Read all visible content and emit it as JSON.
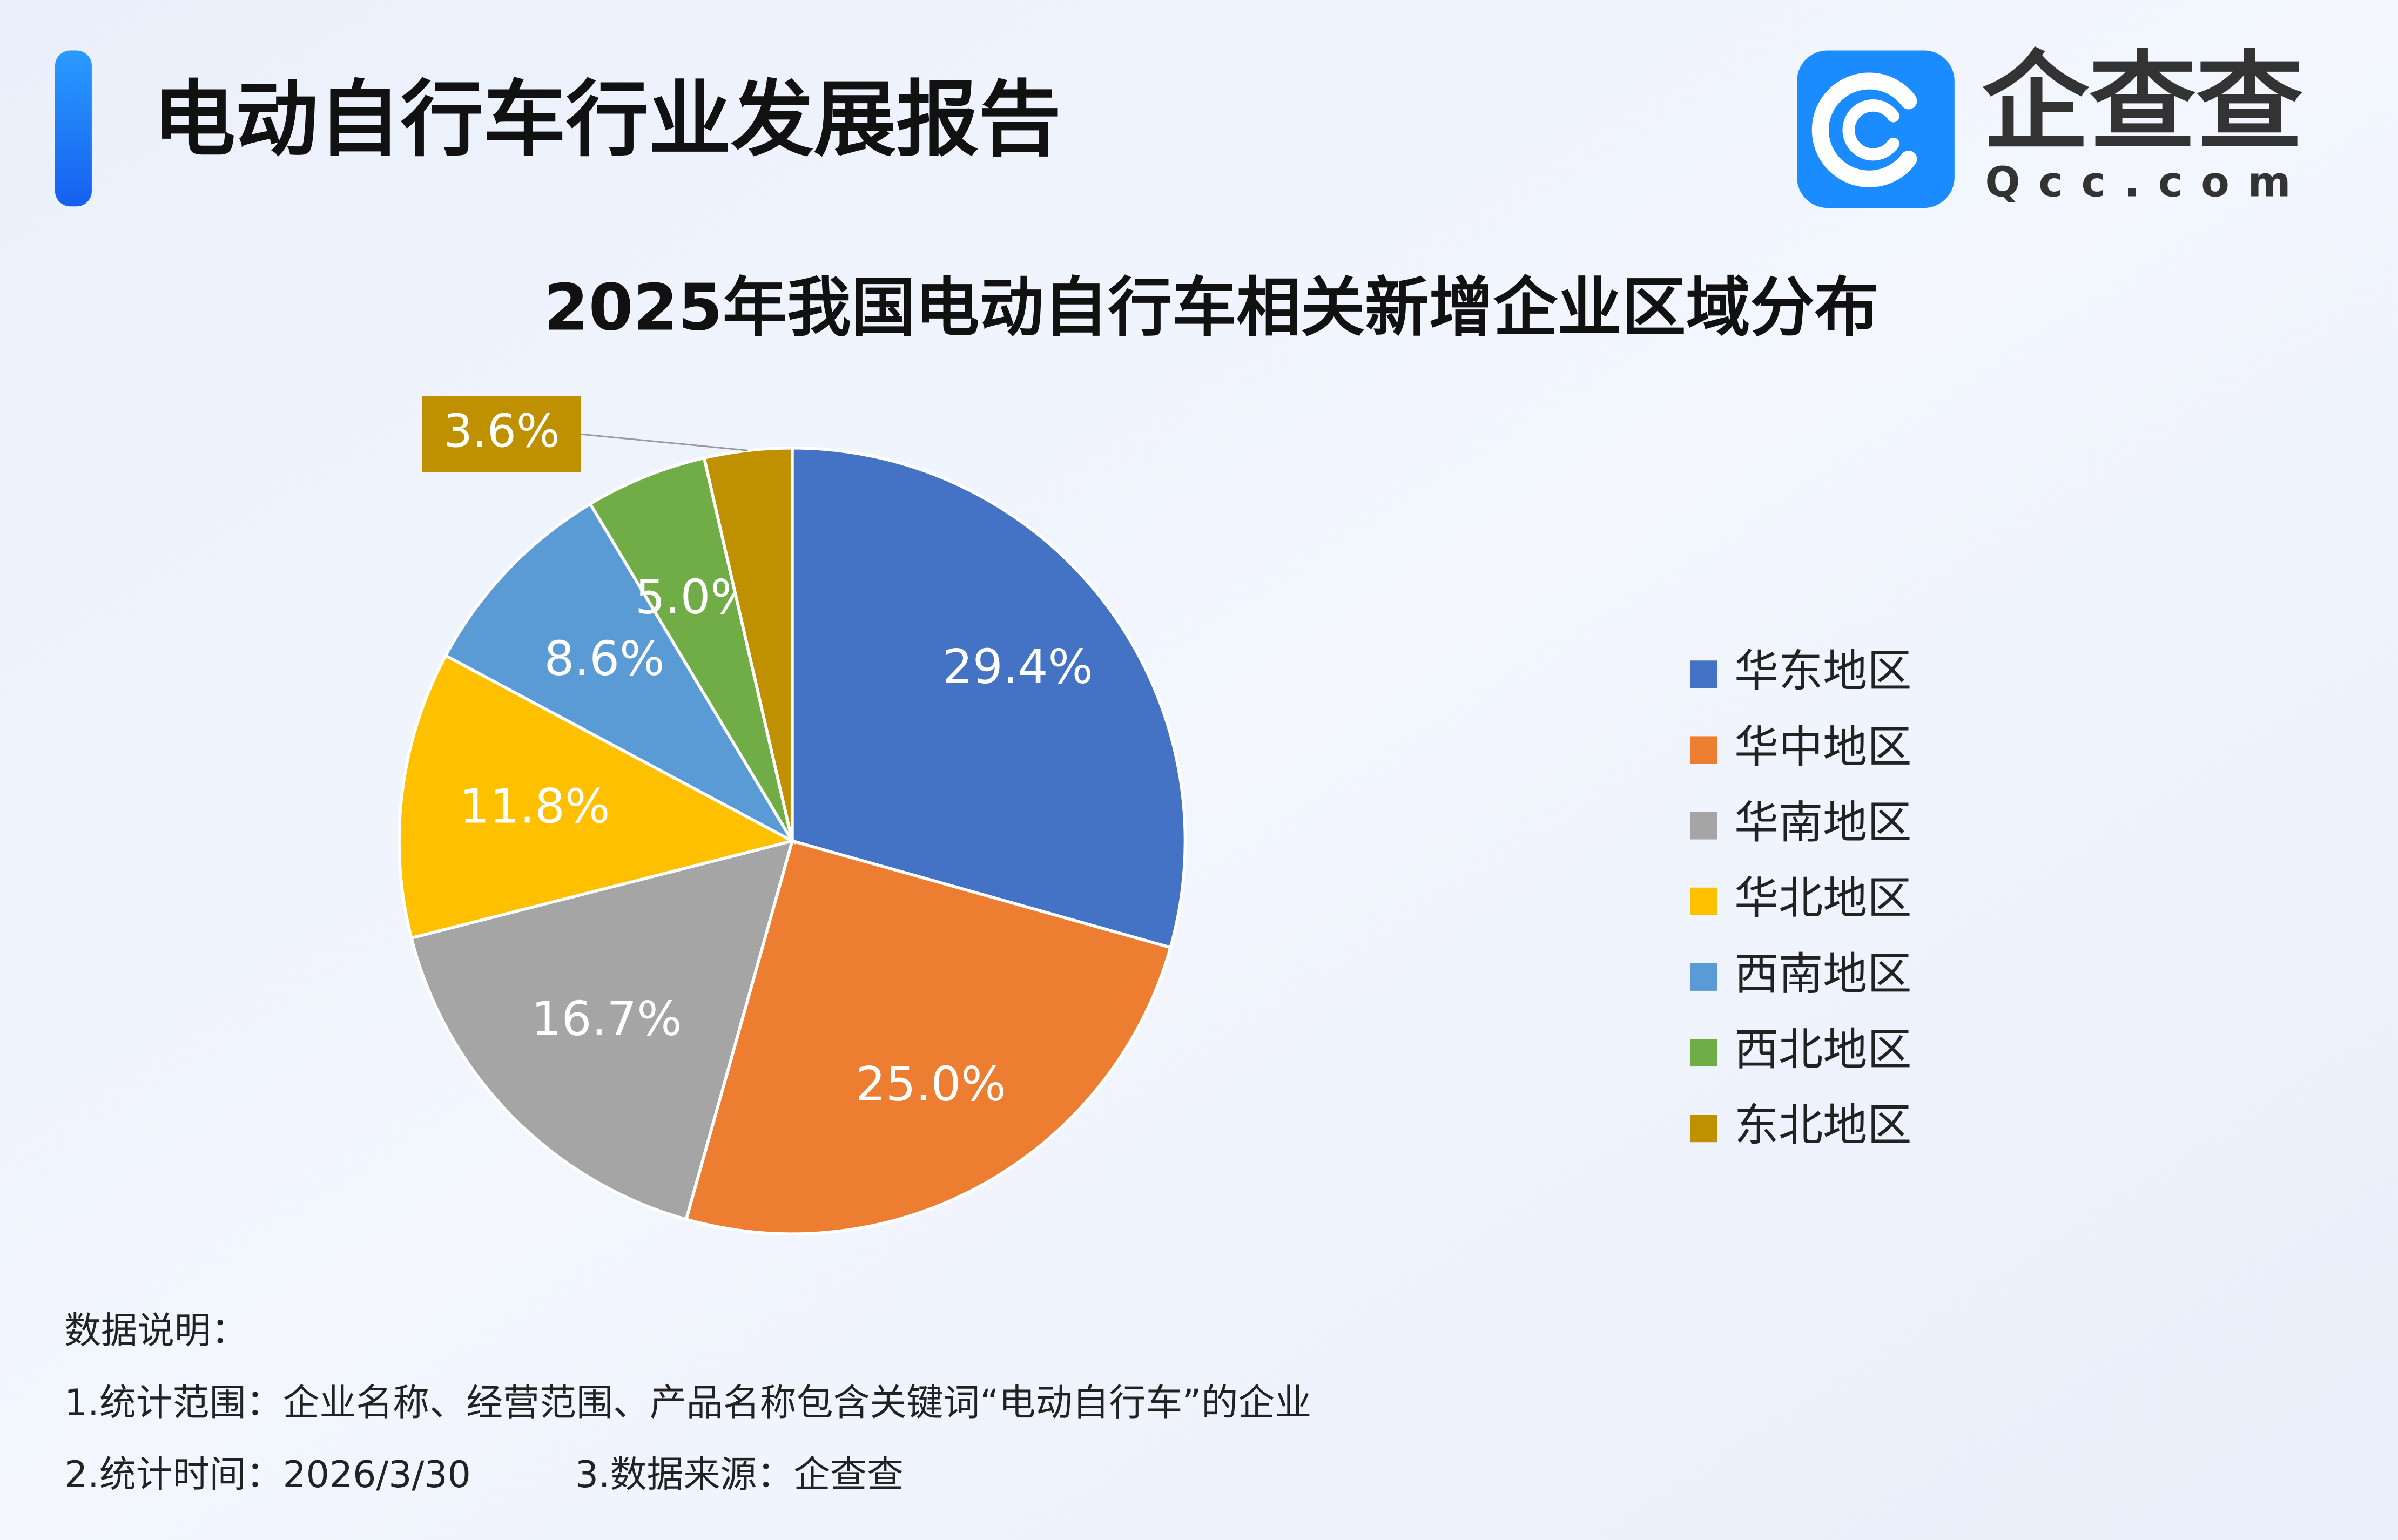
{
  "header": {
    "title": "电动自行车行业发展报告",
    "logo_name": "企查查",
    "logo_domain": "Qcc.com"
  },
  "chart_data": {
    "type": "pie",
    "title": "2025年我国电动自行车相关新增企业区域分布",
    "categories": [
      "华东地区",
      "华中地区",
      "华南地区",
      "华北地区",
      "西南地区",
      "西北地区",
      "东北地区"
    ],
    "values": [
      29.4,
      25.0,
      16.7,
      11.8,
      8.6,
      5.0,
      3.6
    ],
    "value_labels": [
      "29.4%",
      "25.0%",
      "16.7%",
      "11.8%",
      "8.6%",
      "5.0%",
      "3.6%"
    ],
    "colors": [
      "#4472c4",
      "#ed7d31",
      "#a5a5a5",
      "#ffc000",
      "#5b9bd5",
      "#70ad47",
      "#bf9000"
    ],
    "legend": "right"
  },
  "notes": {
    "heading": "数据说明：",
    "lines": [
      "1.统计范围：企业名称、经营范围、产品名称包含关键词“电动自行车”的企业",
      "2.统计时间：2026/3/30",
      "3.数据来源：企查查"
    ]
  }
}
